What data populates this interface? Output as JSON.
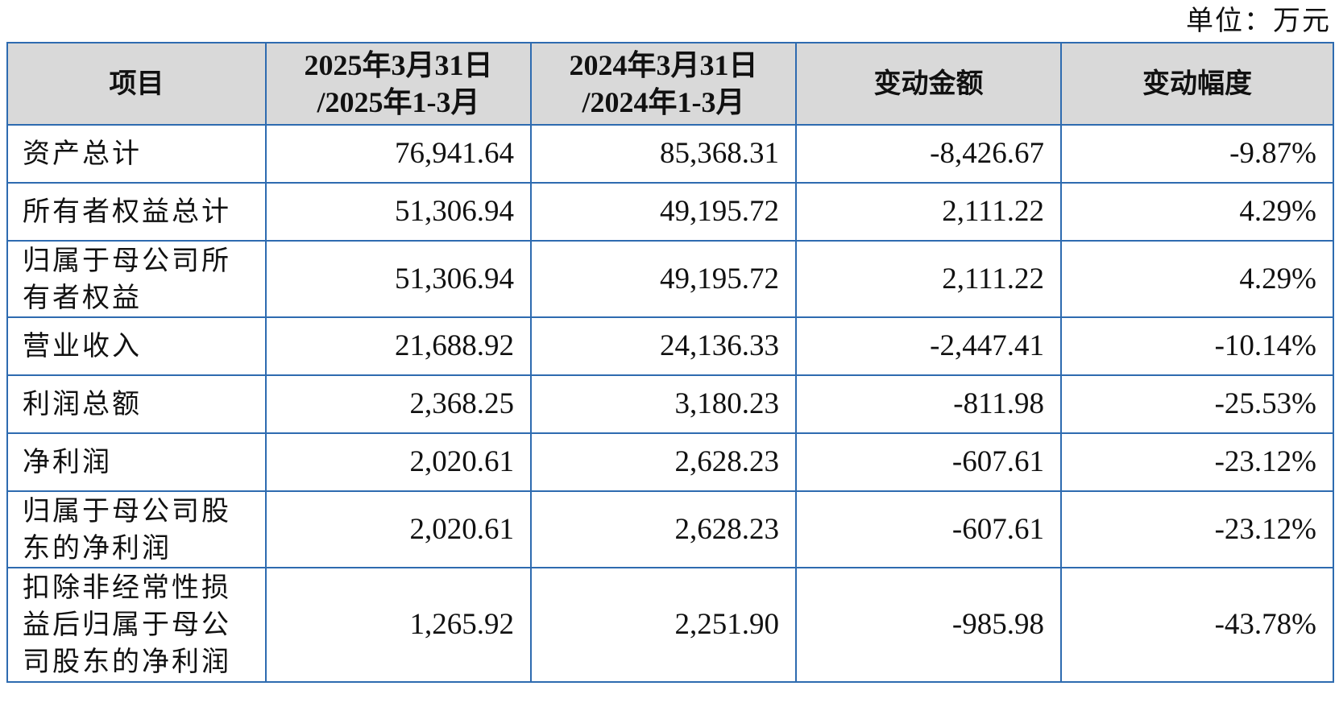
{
  "unit_label": "单位：万元",
  "table": {
    "headers": {
      "item": "项目",
      "col1_line1": "2025年3月31日",
      "col1_line2": "/2025年1-3月",
      "col2_line1": "2024年3月31日",
      "col2_line2": "/2024年1-3月",
      "change_amount": "变动金额",
      "change_pct": "变动幅度"
    },
    "rows": [
      {
        "label": "资产总计",
        "v2025": "76,941.64",
        "v2024": "85,368.31",
        "change": "-8,426.67",
        "pct": "-9.87%"
      },
      {
        "label": "所有者权益总计",
        "v2025": "51,306.94",
        "v2024": "49,195.72",
        "change": "2,111.22",
        "pct": "4.29%"
      },
      {
        "label": "归属于母公司所有者权益",
        "v2025": "51,306.94",
        "v2024": "49,195.72",
        "change": "2,111.22",
        "pct": "4.29%"
      },
      {
        "label": "营业收入",
        "v2025": "21,688.92",
        "v2024": "24,136.33",
        "change": "-2,447.41",
        "pct": "-10.14%"
      },
      {
        "label": "利润总额",
        "v2025": "2,368.25",
        "v2024": "3,180.23",
        "change": "-811.98",
        "pct": "-25.53%"
      },
      {
        "label": "净利润",
        "v2025": "2,020.61",
        "v2024": "2,628.23",
        "change": "-607.61",
        "pct": "-23.12%"
      },
      {
        "label": "归属于母公司股东的净利润",
        "v2025": "2,020.61",
        "v2024": "2,628.23",
        "change": "-607.61",
        "pct": "-23.12%"
      },
      {
        "label": "扣除非经常性损益后归属于母公司股东的净利润",
        "v2025": "1,265.92",
        "v2024": "2,251.90",
        "change": "-985.98",
        "pct": "-43.78%"
      }
    ]
  }
}
